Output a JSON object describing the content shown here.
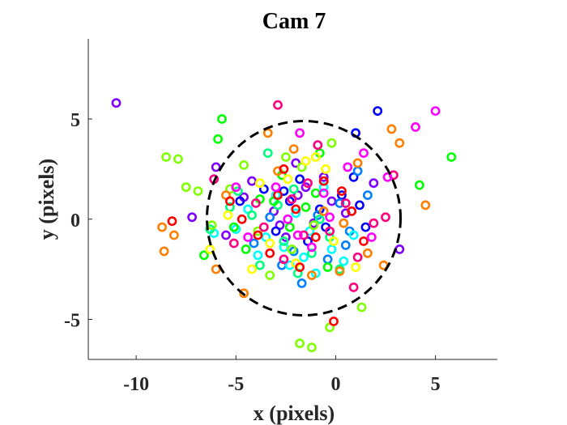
{
  "chart_data": {
    "type": "scatter",
    "title": "Cam 7",
    "xlabel": "x (pixels)",
    "ylabel": "y (pixels)",
    "xlim": [
      -12.4,
      8.1
    ],
    "ylim": [
      -7,
      9
    ],
    "xticks": [
      -10,
      -5,
      0,
      5
    ],
    "xtick_labels": [
      "-10",
      "-5",
      "0",
      "5"
    ],
    "yticks": [
      -5,
      0,
      5
    ],
    "ytick_labels": [
      "-5",
      "0",
      "5"
    ],
    "grid": false,
    "legend": "none",
    "marker": "open-circle",
    "reference_circle": {
      "center": [
        -1.6,
        0.05
      ],
      "radius": 4.85,
      "style": "dashed",
      "color": "#000000"
    },
    "colors": [
      "#ff0000",
      "#ff7f00",
      "#ffff00",
      "#7fff00",
      "#00ff00",
      "#00ff7f",
      "#00ffff",
      "#007fff",
      "#0000ff",
      "#7f00ff",
      "#ff00ff",
      "#ff007f"
    ],
    "series": [
      {
        "color": "#7f00ff",
        "points": [
          [
            -11.0,
            5.8
          ],
          [
            -6.0,
            2.6
          ],
          [
            -4.2,
            1.9
          ],
          [
            -2.0,
            2.8
          ],
          [
            -0.6,
            2.1
          ],
          [
            -1.9,
            1.2
          ],
          [
            -3.1,
            0.4
          ],
          [
            -2.5,
            -0.9
          ],
          [
            -1.1,
            -0.2
          ],
          [
            0.5,
            0.3
          ],
          [
            1.9,
            1.8
          ],
          [
            -7.2,
            0.1
          ],
          [
            -5.5,
            -0.8
          ],
          [
            3.2,
            -1.5
          ],
          [
            -1.5,
            1.6
          ],
          [
            -2.8,
            -0.3
          ],
          [
            -4.6,
            1.1
          ],
          [
            -0.2,
            0.9
          ]
        ]
      },
      {
        "color": "#0000ff",
        "points": [
          [
            1.0,
            4.3
          ],
          [
            2.1,
            5.4
          ],
          [
            0.3,
            1.2
          ],
          [
            -0.8,
            0.5
          ],
          [
            -2.3,
            0.9
          ],
          [
            -3.6,
            1.5
          ],
          [
            1.5,
            -0.4
          ],
          [
            -1.4,
            -1.1
          ],
          [
            -4.8,
            0.9
          ],
          [
            0.9,
            2.1
          ],
          [
            -2.6,
            1.4
          ],
          [
            -0.5,
            -0.4
          ],
          [
            1.2,
            0.7
          ],
          [
            -3.0,
            -0.6
          ],
          [
            -1.8,
            2.0
          ]
        ]
      },
      {
        "color": "#007fff",
        "points": [
          [
            -1.7,
            -3.2
          ],
          [
            -0.4,
            -2.0
          ],
          [
            0.7,
            -0.6
          ],
          [
            -2.1,
            -1.6
          ],
          [
            -3.3,
            0.1
          ],
          [
            0.2,
            0.8
          ],
          [
            1.6,
            1.2
          ],
          [
            -4.1,
            -1.2
          ],
          [
            -0.9,
            0.2
          ],
          [
            -2.7,
            -2.3
          ],
          [
            0.5,
            -1.3
          ],
          [
            1.1,
            2.4
          ]
        ]
      },
      {
        "color": "#00ffff",
        "points": [
          [
            -2.3,
            -2.3
          ],
          [
            -1.0,
            -2.7
          ],
          [
            -3.5,
            -0.9
          ],
          [
            -0.2,
            -1.5
          ],
          [
            -2.0,
            0.3
          ],
          [
            -4.4,
            0.5
          ],
          [
            -1.3,
            -0.6
          ],
          [
            0.4,
            -2.1
          ],
          [
            -3.0,
            1.2
          ],
          [
            -5.0,
            -0.5
          ],
          [
            -0.6,
            1.6
          ],
          [
            -2.6,
            -1.4
          ],
          [
            -1.6,
            -1.9
          ],
          [
            0.9,
            -0.8
          ],
          [
            -3.9,
            -1.8
          ],
          [
            -6.1,
            -0.7
          ]
        ]
      },
      {
        "color": "#00ff7f",
        "points": [
          [
            -3.4,
            3.3
          ],
          [
            -2.6,
            -1.1
          ],
          [
            -1.2,
            -1.7
          ],
          [
            -4.2,
            0.2
          ],
          [
            -0.3,
            -0.9
          ],
          [
            -2.9,
            0.7
          ],
          [
            -5.3,
            0.6
          ],
          [
            -1.9,
            -2.7
          ],
          [
            -3.8,
            -2.3
          ],
          [
            -0.8,
            0.0
          ],
          [
            -4.9,
            1.4
          ],
          [
            -2.1,
            1.5
          ],
          [
            0.2,
            -2.5
          ],
          [
            -6.3,
            -0.5
          ]
        ]
      },
      {
        "color": "#00ff00",
        "points": [
          [
            -6.6,
            -1.8
          ],
          [
            -5.7,
            5.0
          ],
          [
            -5.9,
            4.0
          ],
          [
            -3.8,
            1.0
          ],
          [
            -1.0,
            1.3
          ],
          [
            -2.3,
            -0.4
          ],
          [
            -4.5,
            -1.5
          ],
          [
            -1.5,
            0.6
          ],
          [
            -0.4,
            -2.4
          ],
          [
            -3.1,
            0.9
          ],
          [
            5.8,
            3.1
          ],
          [
            4.2,
            1.7
          ],
          [
            -0.8,
            3.3
          ],
          [
            -2.7,
            2.2
          ],
          [
            -5.1,
            -0.4
          ]
        ]
      },
      {
        "color": "#7fff00",
        "points": [
          [
            -8.5,
            3.1
          ],
          [
            -7.5,
            1.6
          ],
          [
            -7.9,
            3.0
          ],
          [
            -6.2,
            -0.3
          ],
          [
            -3.3,
            -2.8
          ],
          [
            -1.8,
            -6.2
          ],
          [
            -1.2,
            -6.4
          ],
          [
            -0.3,
            -5.4
          ],
          [
            1.3,
            -4.4
          ],
          [
            -1.7,
            2.6
          ],
          [
            -2.5,
            3.1
          ],
          [
            -4.6,
            2.7
          ],
          [
            -0.2,
            3.8
          ],
          [
            -5.3,
            1.5
          ],
          [
            -3.9,
            -0.6
          ],
          [
            -2.2,
            -1.5
          ],
          [
            -1.1,
            -0.3
          ],
          [
            -6.9,
            1.4
          ]
        ]
      },
      {
        "color": "#ffff00",
        "points": [
          [
            -2.4,
            2.0
          ],
          [
            -1.0,
            3.1
          ],
          [
            -3.8,
            1.8
          ],
          [
            -4.2,
            -2.5
          ],
          [
            -0.5,
            2.5
          ],
          [
            -5.4,
            0.2
          ],
          [
            -2.0,
            -2.2
          ],
          [
            -0.1,
            -1.1
          ],
          [
            -3.3,
            -1.2
          ],
          [
            -1.5,
            2.9
          ],
          [
            -6.3,
            -1.5
          ],
          [
            1.0,
            -2.4
          ]
        ]
      },
      {
        "color": "#ff7f00",
        "points": [
          [
            -8.7,
            -0.4
          ],
          [
            -8.6,
            -1.6
          ],
          [
            -8.1,
            -0.8
          ],
          [
            -4.6,
            -3.7
          ],
          [
            -3.4,
            4.3
          ],
          [
            -2.1,
            3.5
          ],
          [
            0.2,
            -2.6
          ],
          [
            1.6,
            -1.7
          ],
          [
            2.4,
            -2.3
          ],
          [
            2.8,
            4.5
          ],
          [
            3.2,
            3.8
          ],
          [
            4.5,
            0.7
          ],
          [
            -6.0,
            -2.5
          ],
          [
            -1.2,
            -2.8
          ],
          [
            -0.6,
            0.4
          ],
          [
            -2.9,
            2.4
          ],
          [
            1.1,
            2.8
          ],
          [
            -5.5,
            1.2
          ],
          [
            0.4,
            -0.2
          ]
        ]
      },
      {
        "color": "#ff0000",
        "points": [
          [
            -8.2,
            -0.1
          ],
          [
            -0.1,
            -5.1
          ],
          [
            -2.6,
            2.5
          ],
          [
            -3.9,
            -0.8
          ],
          [
            -1.0,
            -0.9
          ],
          [
            0.3,
            1.4
          ],
          [
            -2.0,
            0.5
          ],
          [
            -4.7,
            0.0
          ],
          [
            -0.6,
            1.9
          ],
          [
            -3.3,
            -1.7
          ],
          [
            1.4,
            -1.1
          ],
          [
            -1.8,
            -2.4
          ],
          [
            -5.3,
            0.9
          ],
          [
            -2.9,
            1.2
          ],
          [
            0.8,
            0.4
          ]
        ]
      },
      {
        "color": "#ff007f",
        "points": [
          [
            -2.9,
            5.7
          ],
          [
            -0.9,
            3.7
          ],
          [
            0.9,
            -3.4
          ],
          [
            -6.1,
            2.0
          ],
          [
            -4.0,
            0.8
          ],
          [
            -1.6,
            -0.8
          ],
          [
            -2.6,
            -2.0
          ],
          [
            0.5,
            0.8
          ],
          [
            1.9,
            -0.2
          ],
          [
            2.5,
            0.1
          ],
          [
            -3.6,
            -0.4
          ],
          [
            -1.4,
            1.8
          ],
          [
            -5.1,
            -1.2
          ],
          [
            -0.3,
            -0.6
          ],
          [
            -2.2,
            1.0
          ],
          [
            1.1,
            -1.9
          ],
          [
            2.9,
            2.2
          ]
        ]
      },
      {
        "color": "#ff00ff",
        "points": [
          [
            5.0,
            5.4
          ],
          [
            4.0,
            4.6
          ],
          [
            2.6,
            2.1
          ],
          [
            1.4,
            3.3
          ],
          [
            -1.8,
            4.3
          ],
          [
            -0.3,
            0.1
          ],
          [
            -2.4,
            0.0
          ],
          [
            -4.4,
            -0.9
          ],
          [
            -1.2,
            -1.4
          ],
          [
            -3.0,
            1.6
          ],
          [
            0.6,
            2.6
          ],
          [
            -5.0,
            1.6
          ],
          [
            1.8,
            -0.9
          ],
          [
            -1.9,
            -0.8
          ],
          [
            -0.6,
            1.3
          ]
        ]
      }
    ]
  }
}
